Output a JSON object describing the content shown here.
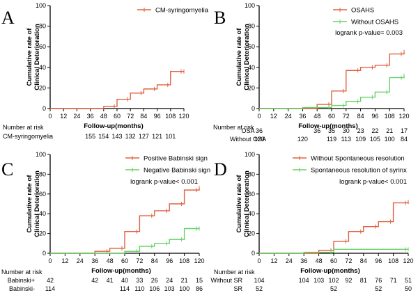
{
  "chart_data": [
    {
      "type": "line",
      "panel": "A",
      "ylabel": "Cumulative rate of Clinical Deterioration",
      "xlabel": "Follow-up(months)",
      "xlim": [
        0,
        120
      ],
      "ylim": [
        0,
        100
      ],
      "xticks": [
        0,
        12,
        24,
        36,
        48,
        60,
        72,
        84,
        96,
        108,
        120
      ],
      "yticks": [
        0,
        20,
        40,
        60,
        80,
        100
      ],
      "legend_position": "top-right",
      "pvalue_text": "",
      "series": [
        {
          "name": "CM-syringomyelia",
          "color": "#e06040",
          "x": [
            0,
            48,
            60,
            72,
            84,
            96,
            108,
            120
          ],
          "y": [
            0,
            2,
            9,
            15,
            19,
            23,
            36,
            36
          ]
        }
      ],
      "risk_table": {
        "header": "Number at risk",
        "rows": [
          {
            "label": "CM-syringomyelia",
            "x": [
              36,
              48,
              60,
              72,
              84,
              96,
              108,
              120
            ],
            "values": [
              "155",
              "154",
              "143",
              "132",
              "127",
              "121",
              "101",
              ""
            ]
          }
        ]
      }
    },
    {
      "type": "line",
      "panel": "B",
      "ylabel": "Cumulative rate of Clinical Deterioration",
      "xlabel": "Follow-up(months)",
      "xlim": [
        0,
        120
      ],
      "ylim": [
        0,
        100
      ],
      "xticks": [
        0,
        12,
        24,
        36,
        48,
        60,
        72,
        84,
        96,
        108,
        120
      ],
      "yticks": [
        0,
        20,
        40,
        60,
        80,
        100
      ],
      "legend_position": "top-right",
      "pvalue_text": "logrank p-value= 0.003",
      "series": [
        {
          "name": "OSAHS",
          "color": "#e06040",
          "x": [
            0,
            48,
            60,
            72,
            84,
            96,
            108,
            120
          ],
          "y": [
            0,
            4,
            17,
            37,
            40,
            42,
            53,
            55
          ]
        },
        {
          "name": "Without OSAHS",
          "color": "#66d166",
          "x": [
            0,
            36,
            60,
            72,
            84,
            96,
            108,
            120
          ],
          "y": [
            0,
            1,
            3,
            7,
            11,
            16,
            30,
            32
          ]
        }
      ],
      "risk_table": {
        "header": "Number at risk",
        "rows": [
          {
            "label": "OSA",
            "x": [
              0,
              36,
              48,
              60,
              72,
              84,
              96,
              108,
              120
            ],
            "values": [
              "36",
              "",
              "36",
              "35",
              "30",
              "23",
              "22",
              "21",
              "17"
            ]
          },
          {
            "label": "Without OSA",
            "x": [
              0,
              36,
              48,
              60,
              72,
              84,
              96,
              108,
              120
            ],
            "values": [
              "120",
              "120",
              "",
              "119",
              "113",
              "109",
              "105",
              "100",
              "84"
            ]
          }
        ]
      }
    },
    {
      "type": "line",
      "panel": "C",
      "ylabel": "Cumulative rate of Clinical Deterioration",
      "xlabel": "Follow-up(months)",
      "xlim": [
        0,
        120
      ],
      "ylim": [
        0,
        100
      ],
      "xticks": [
        0,
        12,
        24,
        36,
        48,
        60,
        72,
        84,
        96,
        108,
        120
      ],
      "yticks": [
        0,
        20,
        40,
        60,
        80,
        100
      ],
      "legend_position": "top-right",
      "pvalue_text": "logrank p-value< 0.001",
      "series": [
        {
          "name": "Positive Babinski sign",
          "color": "#e06040",
          "x": [
            0,
            36,
            48,
            60,
            72,
            84,
            96,
            108,
            120
          ],
          "y": [
            0,
            2,
            5,
            22,
            38,
            43,
            50,
            64,
            66
          ]
        },
        {
          "name": "Negative Babinski sign",
          "color": "#66d166",
          "x": [
            0,
            60,
            72,
            84,
            96,
            108,
            120
          ],
          "y": [
            0,
            2,
            7,
            10,
            14,
            25,
            25
          ]
        }
      ],
      "risk_table": {
        "header": "Number at risk",
        "rows": [
          {
            "label": "Babinski+",
            "x": [
              0,
              36,
              48,
              60,
              72,
              84,
              96,
              108,
              120
            ],
            "values": [
              "42",
              "42",
              "41",
              "40",
              "33",
              "26",
              "24",
              "21",
              "15"
            ]
          },
          {
            "label": "Babinski-",
            "x": [
              0,
              36,
              48,
              60,
              72,
              84,
              96,
              108,
              120
            ],
            "values": [
              "114",
              "",
              "",
              "114",
              "110",
              "106",
              "103",
              "100",
              "86"
            ]
          }
        ]
      }
    },
    {
      "type": "line",
      "panel": "D",
      "ylabel": "Cumulative rate of Clinical Deterioration",
      "xlabel": "Follow-up(months)",
      "xlim": [
        0,
        120
      ],
      "ylim": [
        0,
        100
      ],
      "xticks": [
        0,
        12,
        24,
        36,
        48,
        60,
        72,
        84,
        96,
        108,
        120
      ],
      "yticks": [
        0,
        20,
        40,
        60,
        80,
        100
      ],
      "legend_position": "top-right",
      "pvalue_text": "logrank p-value< 0.001",
      "series": [
        {
          "name": "Without Spontaneous resolution",
          "color": "#e06040",
          "x": [
            0,
            48,
            60,
            72,
            84,
            96,
            108,
            120
          ],
          "y": [
            0,
            3,
            12,
            22,
            27,
            32,
            51,
            52
          ]
        },
        {
          "name": "Spontaneous resolution of syrinx",
          "color": "#66d166",
          "x": [
            0,
            36,
            60,
            120
          ],
          "y": [
            0,
            1,
            4,
            4
          ]
        }
      ],
      "risk_table": {
        "header": "Number at risk",
        "rows": [
          {
            "label": "Without SR",
            "x": [
              0,
              36,
              48,
              60,
              72,
              84,
              96,
              108,
              120
            ],
            "values": [
              "104",
              "104",
              "103",
              "102",
              "92",
              "81",
              "76",
              "71",
              "51"
            ]
          },
          {
            "label": "SR",
            "x": [
              0,
              36,
              48,
              60,
              72,
              84,
              96,
              108,
              120
            ],
            "values": [
              "52",
              "",
              "",
              "52",
              "",
              "",
              "52",
              "",
              "50"
            ]
          }
        ]
      }
    }
  ]
}
